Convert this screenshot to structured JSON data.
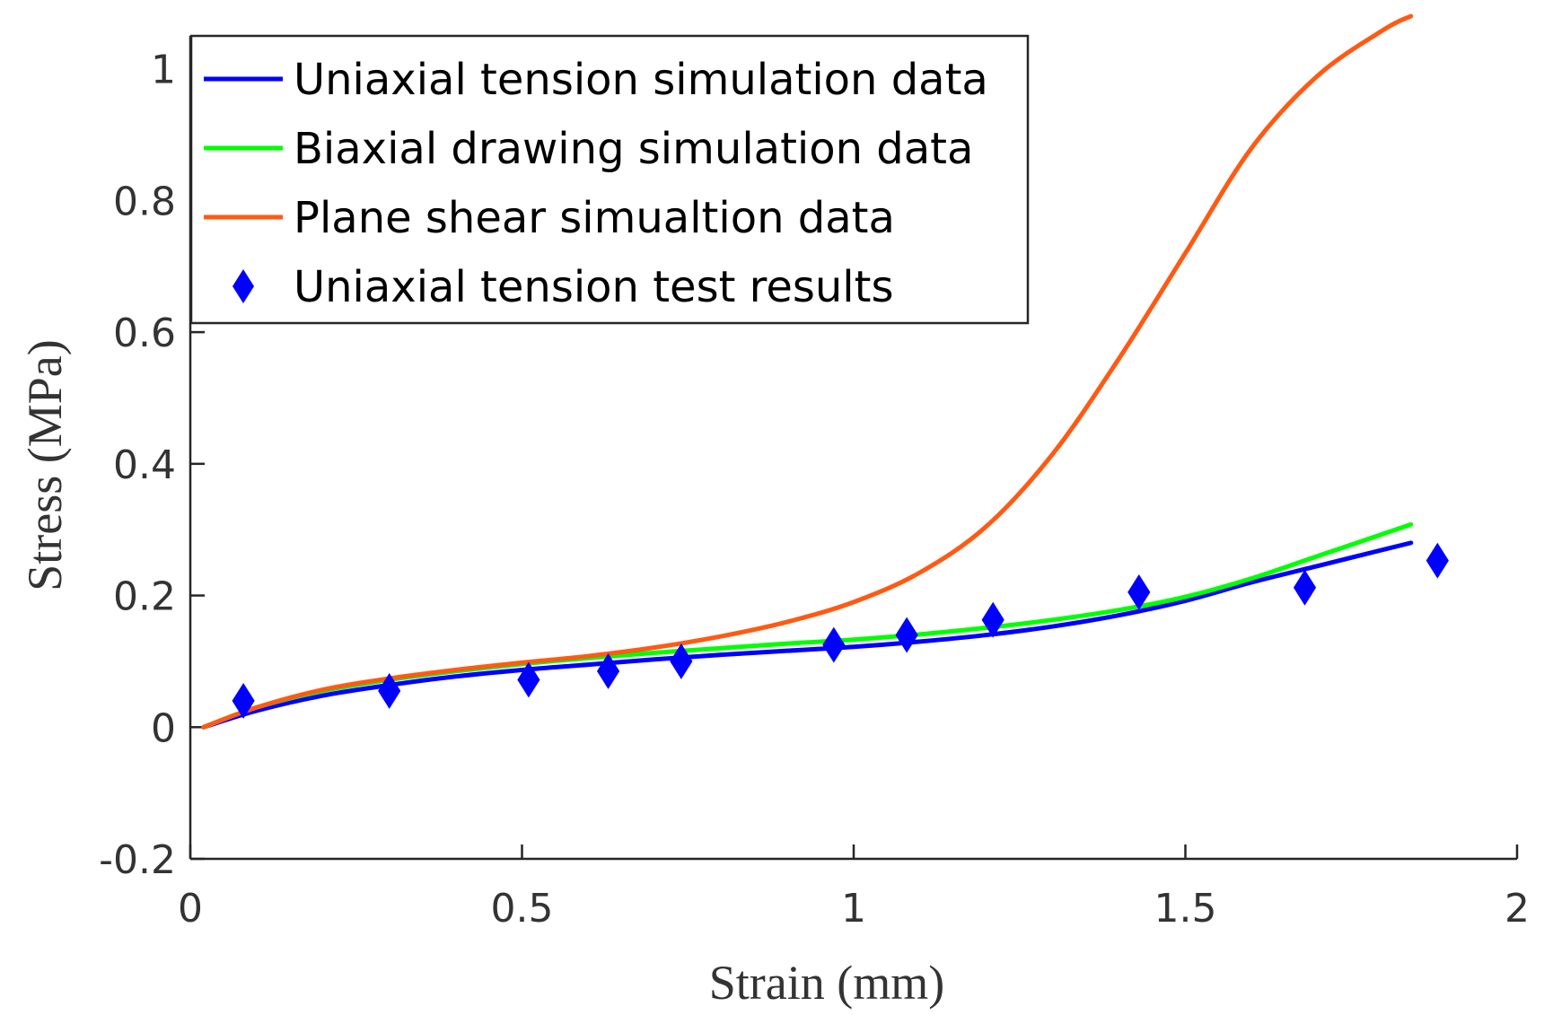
{
  "chart_data": {
    "type": "line",
    "title": "",
    "xlabel": "Strain (mm)",
    "ylabel": "Stress (MPa)",
    "xlim": [
      0,
      2
    ],
    "ylim": [
      -0.2,
      1.05
    ],
    "xticks": [
      0,
      0.5,
      1,
      1.5,
      2
    ],
    "xtick_labels": [
      "0",
      "0.5",
      "1",
      "1.5",
      "2"
    ],
    "yticks": [
      -0.2,
      0,
      0.2,
      0.4,
      0.6,
      0.8,
      1
    ],
    "ytick_labels": [
      "-0.2",
      "0",
      "0.2",
      "0.4",
      "0.6",
      "0.8",
      "1"
    ],
    "grid": false,
    "legend_position": "top-left",
    "series": [
      {
        "name": "Uniaxial tension simulation data",
        "kind": "line",
        "color": "#0000FF",
        "x": [
          0.02,
          0.1,
          0.2,
          0.3,
          0.4,
          0.5,
          0.6,
          0.7,
          0.8,
          0.9,
          1.0,
          1.1,
          1.2,
          1.3,
          1.4,
          1.5,
          1.6,
          1.7,
          1.84
        ],
        "y": [
          0.0,
          0.025,
          0.048,
          0.064,
          0.077,
          0.087,
          0.095,
          0.103,
          0.11,
          0.116,
          0.122,
          0.13,
          0.14,
          0.153,
          0.17,
          0.192,
          0.22,
          0.245,
          0.28
        ]
      },
      {
        "name": "Biaxial drawing simulation data",
        "kind": "line",
        "color": "#00FF00",
        "x": [
          0.02,
          0.1,
          0.2,
          0.3,
          0.4,
          0.5,
          0.6,
          0.7,
          0.8,
          0.9,
          1.0,
          1.1,
          1.2,
          1.3,
          1.4,
          1.5,
          1.6,
          1.7,
          1.84
        ],
        "y": [
          0.0,
          0.03,
          0.055,
          0.072,
          0.085,
          0.096,
          0.105,
          0.113,
          0.12,
          0.127,
          0.133,
          0.141,
          0.151,
          0.163,
          0.178,
          0.198,
          0.226,
          0.26,
          0.308
        ]
      },
      {
        "name": "Plane shear simualtion data",
        "kind": "line",
        "color": "#FF5A14",
        "x": [
          0.02,
          0.1,
          0.2,
          0.3,
          0.4,
          0.5,
          0.6,
          0.7,
          0.8,
          0.9,
          1.0,
          1.1,
          1.2,
          1.3,
          1.4,
          1.5,
          1.6,
          1.7,
          1.8,
          1.84
        ],
        "y": [
          0.0,
          0.03,
          0.057,
          0.074,
          0.087,
          0.098,
          0.108,
          0.121,
          0.138,
          0.16,
          0.19,
          0.235,
          0.305,
          0.415,
          0.56,
          0.72,
          0.88,
          0.99,
          1.06,
          1.08
        ]
      },
      {
        "name": "Uniaxial tension test results",
        "kind": "scatter",
        "marker": "diamond",
        "color": "#0000FF",
        "x": [
          0.08,
          0.3,
          0.51,
          0.63,
          0.74,
          0.97,
          1.08,
          1.21,
          1.43,
          1.68,
          1.88
        ],
        "y": [
          0.04,
          0.055,
          0.072,
          0.085,
          0.1,
          0.125,
          0.14,
          0.163,
          0.205,
          0.212,
          0.253
        ]
      }
    ]
  }
}
